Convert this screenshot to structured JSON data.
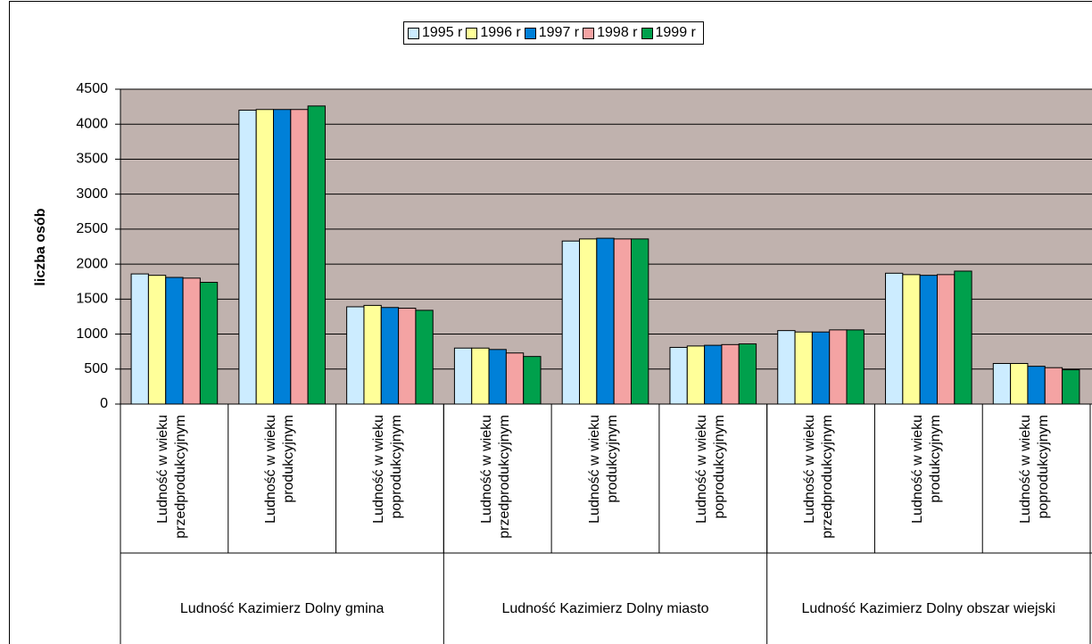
{
  "chart_data": {
    "type": "bar",
    "y_label": "liczba osób",
    "categories": [
      "Ludność w wieku przedprodukcyjnym",
      "Ludność w wieku produkcyjnym",
      "Ludność w wieku poprodukcyjnym",
      "Ludność w wieku przedprodukcyjnym",
      "Ludność w wieku produkcyjnym",
      "Ludność w wieku poprodukcyjnym",
      "Ludność w wieku przedprodukcyjnym",
      "Ludność w wieku produkcyjnym",
      "Ludność w wieku poprodukcyjnym"
    ],
    "groups": [
      "Ludność Kazimierz Dolny gmina",
      "Ludność Kazimierz Dolny miasto",
      "Ludność Kazimierz Dolny obszar wiejski"
    ],
    "series": [
      {
        "name": "1995 r",
        "color": "#ccecff",
        "values": [
          1860,
          4200,
          1390,
          800,
          2330,
          810,
          1050,
          1870,
          580
        ]
      },
      {
        "name": "1996 r",
        "color": "#ffff99",
        "values": [
          1840,
          4210,
          1410,
          800,
          2360,
          830,
          1030,
          1850,
          580
        ]
      },
      {
        "name": "1997 r",
        "color": "#0080d8",
        "values": [
          1810,
          4210,
          1380,
          780,
          2370,
          840,
          1030,
          1840,
          540
        ]
      },
      {
        "name": "1998 r",
        "color": "#f4a3a3",
        "values": [
          1800,
          4210,
          1370,
          730,
          2360,
          850,
          1060,
          1850,
          520
        ]
      },
      {
        "name": "1999 r",
        "color": "#00a04c",
        "values": [
          1740,
          4260,
          1340,
          680,
          2360,
          860,
          1060,
          1900,
          490
        ]
      }
    ],
    "ylim": [
      0,
      4500
    ],
    "yticks": [
      0,
      500,
      1000,
      1500,
      2000,
      2500,
      3000,
      3500,
      4000,
      4500
    ],
    "grid": true,
    "legend": "top",
    "plot_background": "#c0b2ae"
  }
}
